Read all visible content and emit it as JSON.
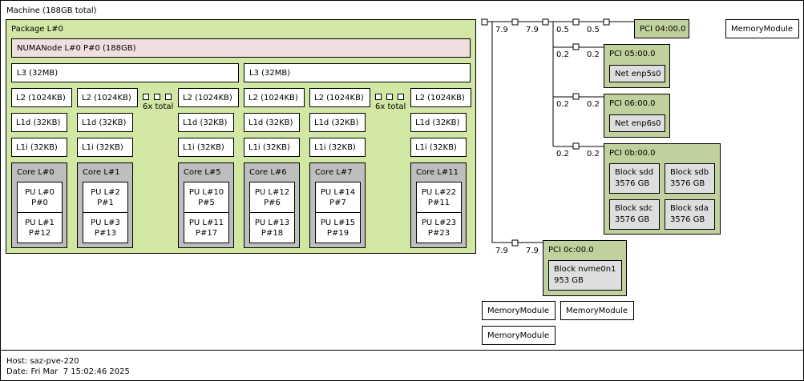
{
  "machine": {
    "title": "Machine (188GB total)"
  },
  "package": {
    "title": "Package L#0",
    "numa": "NUMANode L#0 P#0 (188GB)",
    "l3": [
      "L3 (32MB)",
      "L3 (32MB)"
    ],
    "l2": [
      "L2 (1024KB)",
      "L2 (1024KB)",
      "L2 (1024KB)",
      "L2 (1024KB)",
      "L2 (1024KB)",
      "L2 (1024KB)"
    ],
    "l1d": [
      "L1d (32KB)",
      "L1d (32KB)",
      "L1d (32KB)",
      "L1d (32KB)",
      "L1d (32KB)",
      "L1d (32KB)"
    ],
    "l1i": [
      "L1i (32KB)",
      "L1i (32KB)",
      "L1i (32KB)",
      "L1i (32KB)",
      "L1i (32KB)",
      "L1i (32KB)"
    ],
    "collapsed": [
      "6x total",
      "6x total"
    ],
    "cores": [
      {
        "label": "Core L#0",
        "pus": [
          [
            "PU L#0",
            "P#0"
          ],
          [
            "PU L#1",
            "P#12"
          ]
        ]
      },
      {
        "label": "Core L#1",
        "pus": [
          [
            "PU L#2",
            "P#1"
          ],
          [
            "PU L#3",
            "P#13"
          ]
        ]
      },
      {
        "label": "Core L#5",
        "pus": [
          [
            "PU L#10",
            "P#5"
          ],
          [
            "PU L#11",
            "P#17"
          ]
        ]
      },
      {
        "label": "Core L#6",
        "pus": [
          [
            "PU L#12",
            "P#6"
          ],
          [
            "PU L#13",
            "P#18"
          ]
        ]
      },
      {
        "label": "Core L#7",
        "pus": [
          [
            "PU L#14",
            "P#7"
          ],
          [
            "PU L#15",
            "P#19"
          ]
        ]
      },
      {
        "label": "Core L#11",
        "pus": [
          [
            "PU L#22",
            "P#11"
          ],
          [
            "PU L#23",
            "P#23"
          ]
        ]
      }
    ]
  },
  "pci": {
    "p04": "PCI 04:00.0",
    "p05": {
      "label": "PCI 05:00.0",
      "dev": "Net enp5s0"
    },
    "p06": {
      "label": "PCI 06:00.0",
      "dev": "Net enp6s0"
    },
    "p0b": {
      "label": "PCI 0b:00.0",
      "devs": [
        [
          "Block sdd",
          "3576 GB"
        ],
        [
          "Block sdb",
          "3576 GB"
        ],
        [
          "Block sdc",
          "3576 GB"
        ],
        [
          "Block sda",
          "3576 GB"
        ]
      ]
    },
    "p0c": {
      "label": "PCI 0c:00.0",
      "dev": [
        "Block nvme0n1",
        "953 GB"
      ]
    }
  },
  "links": {
    "top_a": "7.9",
    "top_b": "7.9",
    "top_c": "0.5",
    "top_d": "0.5",
    "l05a": "0.2",
    "l05b": "0.2",
    "l06a": "0.2",
    "l06b": "0.2",
    "l0ba": "0.2",
    "l0bb": "0.2",
    "l0ca": "7.9",
    "l0cb": "7.9"
  },
  "memory_modules": [
    "MemoryModule",
    "MemoryModule",
    "MemoryModule",
    "MemoryModule"
  ],
  "footer": {
    "host": "Host: saz-pve-220",
    "date": "Date: Fri Mar  7 15:02:46 2025"
  }
}
